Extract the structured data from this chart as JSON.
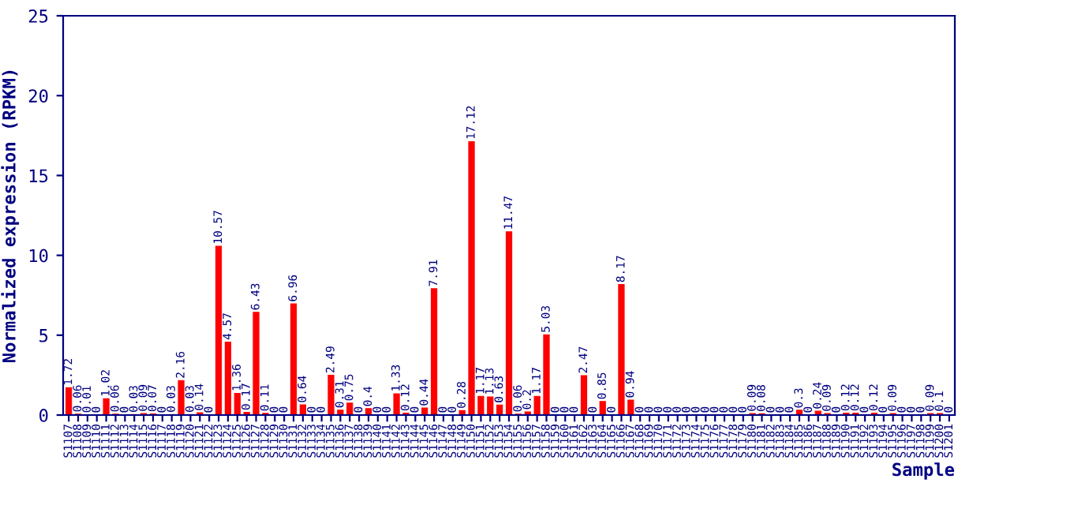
{
  "chart_data": {
    "type": "bar",
    "xlabel": "Sample",
    "ylabel": "Normalized expression (RPKM)",
    "categories": [
      "S1107",
      "S1108",
      "S1109",
      "S1110",
      "S1111",
      "S1112",
      "S1113",
      "S1114",
      "S1115",
      "S1116",
      "S1117",
      "S1118",
      "S1119",
      "S1120",
      "S1121",
      "S1122",
      "S1123",
      "S1124",
      "S1125",
      "S1126",
      "S1127",
      "S1128",
      "S1129",
      "S1130",
      "S1131",
      "S1132",
      "S1133",
      "S1134",
      "S1135",
      "S1136",
      "S1137",
      "S1138",
      "S1139",
      "S1140",
      "S1141",
      "S1142",
      "S1143",
      "S1144",
      "S1145",
      "S1146",
      "S1147",
      "S1148",
      "S1149",
      "S1150",
      "S1151",
      "S1152",
      "S1153",
      "S1154",
      "S1155",
      "S1156",
      "S1157",
      "S1158",
      "S1159",
      "S1160",
      "S1161",
      "S1162",
      "S1163",
      "S1164",
      "S1165",
      "S1166",
      "S1167",
      "S1168",
      "S1169",
      "S1170",
      "S1171",
      "S1172",
      "S1173",
      "S1174",
      "S1175",
      "S1176",
      "S1177",
      "S1178",
      "S1179",
      "S1180",
      "S1181",
      "S1182",
      "S1183",
      "S1184",
      "S1185",
      "S1186",
      "S1187",
      "S1188",
      "S1189",
      "S1190",
      "S1191",
      "S1192",
      "S1193",
      "S1194",
      "S1195",
      "S1196",
      "S1197",
      "S1198",
      "S1199",
      "S1200",
      "S1201"
    ],
    "values": [
      1.72,
      0.06,
      0.01,
      0,
      1.02,
      0.06,
      0,
      0.03,
      0.09,
      0.07,
      0,
      0.03,
      2.16,
      0.03,
      0.14,
      0,
      10.57,
      4.57,
      1.36,
      0.17,
      6.43,
      0.11,
      0,
      0,
      6.96,
      0.64,
      0,
      0,
      2.49,
      0.31,
      0.75,
      0,
      0.4,
      0,
      0,
      1.33,
      0.12,
      0,
      0.44,
      7.91,
      0,
      0,
      0.28,
      17.12,
      1.17,
      1.13,
      0.63,
      11.47,
      0.06,
      0.2,
      1.17,
      5.03,
      0,
      0,
      0,
      2.47,
      0,
      0.85,
      0,
      8.17,
      0.94,
      0,
      0,
      0,
      0,
      0,
      0,
      0,
      0,
      0,
      0,
      0,
      0,
      0.09,
      0.08,
      0,
      0,
      0,
      0.3,
      0,
      0.24,
      0.09,
      0,
      0.12,
      0.12,
      0,
      0.12,
      0,
      0.09,
      0,
      0,
      0,
      0.09,
      0.1,
      0
    ],
    "color": "#ff0000",
    "data_labels": true,
    "ylim": [
      0,
      25
    ],
    "yticks": [
      0,
      5,
      10,
      15,
      20,
      25
    ],
    "grid": false,
    "legend": false
  }
}
